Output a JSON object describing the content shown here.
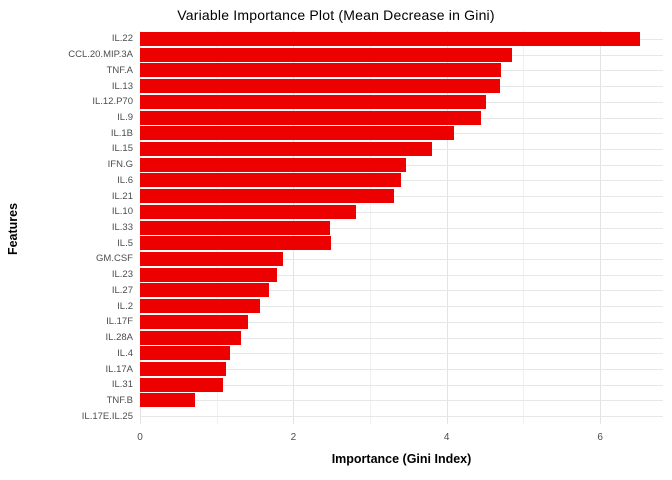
{
  "chart_data": {
    "type": "bar",
    "orientation": "horizontal",
    "title": "Variable Importance Plot (Mean Decrease in Gini)",
    "xlabel": "Importance (Gini Index)",
    "ylabel": "Features",
    "categories": [
      "IL.22",
      "CCL.20.MIP.3A",
      "TNF.A",
      "IL.13",
      "IL.12.P70",
      "IL.9",
      "IL.1B",
      "IL.15",
      "IFN.G",
      "IL.6",
      "IL.21",
      "IL.10",
      "IL.33",
      "IL.5",
      "GM.CSF",
      "IL.23",
      "IL.27",
      "IL.2",
      "IL.17F",
      "IL.28A",
      "IL.4",
      "IL.17A",
      "IL.31",
      "TNF.B",
      "IL.17E.IL.25"
    ],
    "values": [
      6.52,
      4.85,
      4.71,
      4.69,
      4.51,
      4.44,
      4.09,
      3.81,
      3.47,
      3.4,
      3.31,
      2.82,
      2.48,
      2.49,
      1.86,
      1.79,
      1.68,
      1.56,
      1.41,
      1.32,
      1.17,
      1.12,
      1.08,
      0.72,
      0.0
    ],
    "xlim": [
      0,
      6.82
    ],
    "x_major_ticks": [
      0,
      2,
      4,
      6
    ],
    "x_minor_ticks": [
      1,
      3,
      5
    ],
    "grid": true,
    "legend_position": "none",
    "bar_color": "#ed0000",
    "grid_major_color": "#e3e3e3",
    "grid_minor_color": "#f0f0f0",
    "row_grid_color": "#e7e7e7",
    "tick_label_color": "#4d4d4d",
    "title_color": "#000000",
    "background_color": "#ffffff"
  }
}
